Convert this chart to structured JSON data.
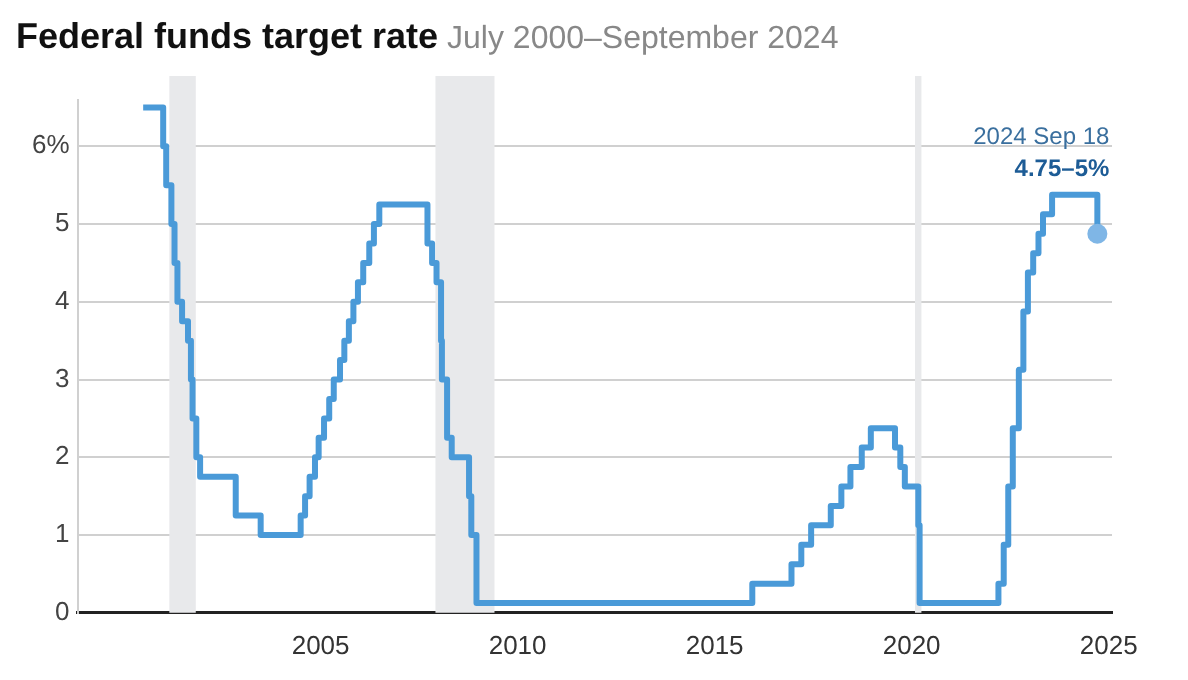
{
  "chart_data": {
    "type": "step",
    "title": "Federal funds target rate",
    "subtitle": "July 2000–September 2024",
    "x": [
      "2000-07-01",
      "2001-01-03",
      "2001-01-31",
      "2001-03-20",
      "2001-04-18",
      "2001-05-15",
      "2001-06-27",
      "2001-08-21",
      "2001-09-17",
      "2001-10-02",
      "2001-11-06",
      "2001-12-11",
      "2002-11-06",
      "2003-06-25",
      "2004-06-30",
      "2004-08-10",
      "2004-09-21",
      "2004-11-10",
      "2004-12-14",
      "2005-02-02",
      "2005-03-22",
      "2005-05-03",
      "2005-06-30",
      "2005-08-09",
      "2005-09-20",
      "2005-11-01",
      "2005-12-13",
      "2006-01-31",
      "2006-03-28",
      "2006-05-10",
      "2006-06-29",
      "2007-09-18",
      "2007-10-31",
      "2007-12-11",
      "2008-01-22",
      "2008-01-30",
      "2008-03-18",
      "2008-04-30",
      "2008-10-08",
      "2008-10-29",
      "2008-12-16",
      "2015-12-16",
      "2016-12-14",
      "2017-03-15",
      "2017-06-14",
      "2017-12-13",
      "2018-03-21",
      "2018-06-13",
      "2018-09-26",
      "2018-12-19",
      "2019-07-31",
      "2019-09-18",
      "2019-10-30",
      "2020-03-03",
      "2020-03-15",
      "2022-03-16",
      "2022-05-04",
      "2022-06-15",
      "2022-07-27",
      "2022-09-21",
      "2022-11-02",
      "2022-12-14",
      "2023-02-01",
      "2023-03-22",
      "2023-05-03",
      "2023-07-26",
      "2024-09-18"
    ],
    "series": [
      {
        "color": "#4a9ad8",
        "values": [
          6.5,
          6.0,
          5.5,
          5.0,
          4.5,
          4.0,
          3.75,
          3.5,
          3.0,
          2.5,
          2.0,
          1.75,
          1.25,
          1.0,
          1.25,
          1.5,
          1.75,
          2.0,
          2.25,
          2.5,
          2.75,
          3.0,
          3.25,
          3.5,
          3.75,
          4.0,
          4.25,
          4.5,
          4.75,
          5.0,
          5.25,
          4.75,
          4.5,
          4.25,
          3.5,
          3.0,
          2.25,
          2.0,
          1.5,
          1.0,
          0.125,
          0.375,
          0.625,
          0.875,
          1.125,
          1.375,
          1.625,
          1.875,
          2.125,
          2.375,
          2.125,
          1.875,
          1.625,
          1.125,
          0.125,
          0.375,
          0.875,
          1.625,
          2.375,
          3.125,
          3.875,
          4.375,
          4.625,
          4.875,
          5.125,
          5.375,
          4.875
        ]
      }
    ],
    "xlim": [
      "1998-11",
      "2025-02"
    ],
    "xticks": [
      "2005",
      "2010",
      "2015",
      "2020",
      "2025"
    ],
    "ylim": [
      0,
      6.6
    ],
    "yticks": [
      0,
      1,
      2,
      3,
      4,
      5,
      {
        "value": 6,
        "label": "6%"
      }
    ],
    "grid": "y",
    "legend": false,
    "bands": [
      {
        "axis": "x",
        "from": "2001-03",
        "to": "2001-11",
        "color": "#e8e9eb"
      },
      {
        "axis": "x",
        "from": "2007-12",
        "to": "2009-06",
        "color": "#e8e9eb"
      },
      {
        "axis": "x",
        "from": "2020-02",
        "to": "2020-04",
        "color": "#e8e9eb"
      }
    ],
    "annotations": [
      "2024 Sep 18",
      "4.75–5%"
    ]
  }
}
